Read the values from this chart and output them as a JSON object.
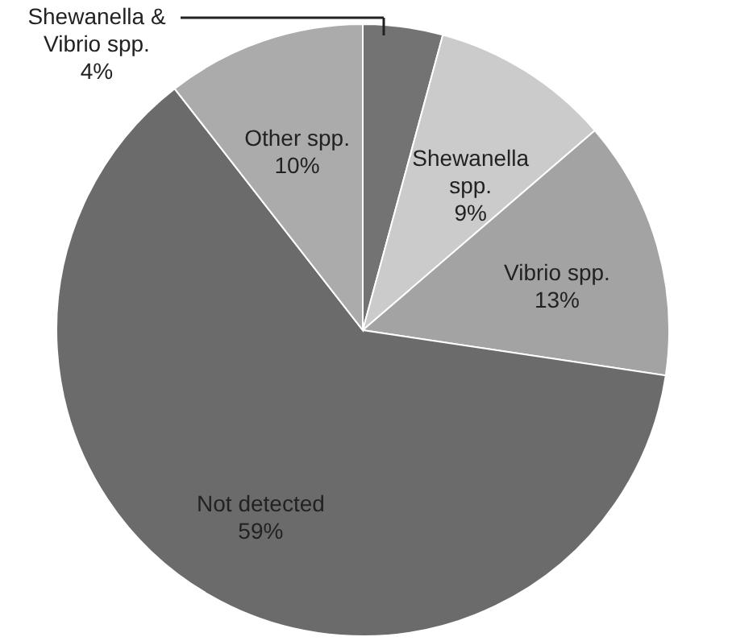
{
  "chart_data": {
    "type": "pie",
    "categories": [
      "Shewanella & Vibrio spp.",
      "Shewanella spp.",
      "Vibrio spp.",
      "Not detected",
      "Other spp."
    ],
    "values": [
      4,
      9,
      13,
      59,
      10
    ],
    "value_labels": [
      "4%",
      "9%",
      "13%",
      "59%",
      "10%"
    ],
    "colors": [
      "#737373",
      "#cbcbcb",
      "#a3a3a3",
      "#6b6b6b",
      "#ababab"
    ]
  }
}
